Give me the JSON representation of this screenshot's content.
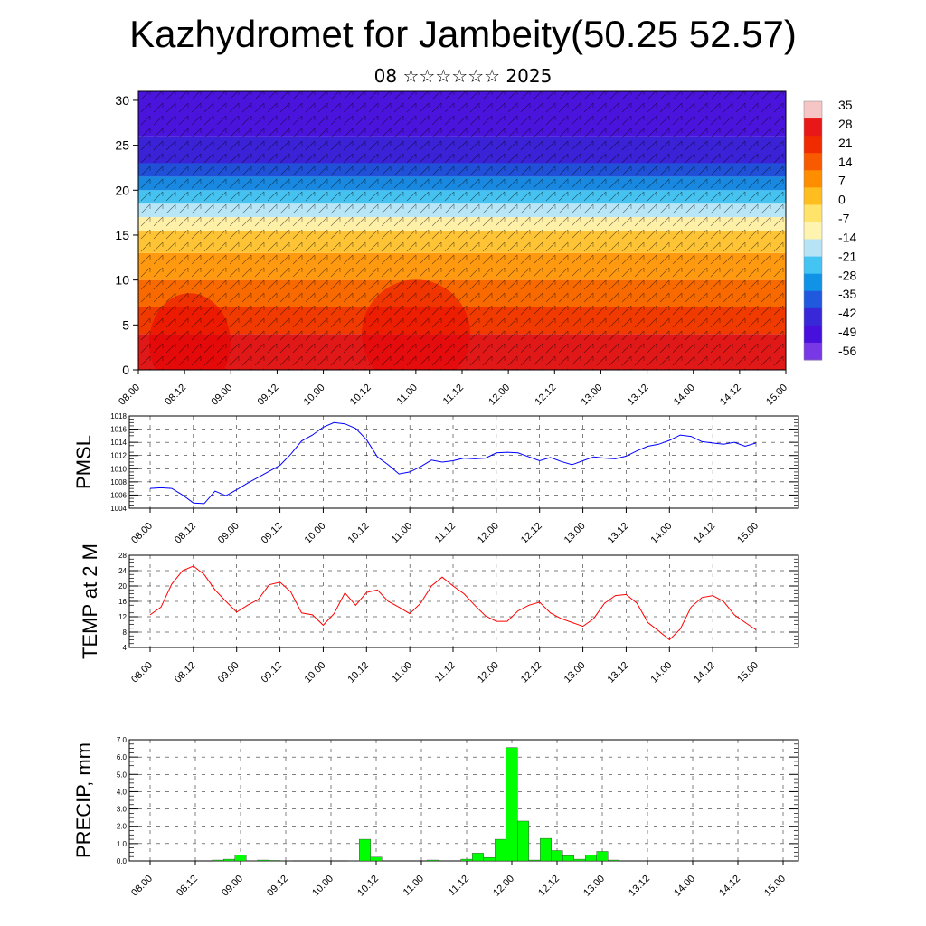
{
  "title": "Kazhydromet for Jambeity(50.25 52.57)",
  "subtitle": "08 ☆☆☆☆☆☆ 2025",
  "colors": {
    "pmsl_line": "#0000ff",
    "temp_line": "#ff0000",
    "precip_bar": "#00ff00"
  },
  "chart_data": [
    {
      "type": "heatmap",
      "name": "vertical-cross-section",
      "x_ticks": [
        "08.00",
        "08.12",
        "09.00",
        "09.12",
        "10.00",
        "10.12",
        "11.00",
        "11.12",
        "12.00",
        "12.12",
        "13.00",
        "13.12",
        "14.00",
        "14.12",
        "15.00"
      ],
      "y_ticks": [
        0,
        5,
        10,
        15,
        20,
        25,
        30
      ],
      "ylim": [
        0,
        31
      ],
      "colorbar_labels": [
        "35",
        "28",
        "21",
        "14",
        "7",
        "0",
        "-7",
        "-14",
        "-21",
        "-28",
        "-35",
        "-42",
        "-49",
        "-56"
      ],
      "colorbar_colors": [
        "#f6c6c6",
        "#e81818",
        "#f02b00",
        "#f85a00",
        "#ff8d00",
        "#ffbd20",
        "#ffe36a",
        "#fff3b0",
        "#b6e4f6",
        "#43c4f2",
        "#1093e6",
        "#2058de",
        "#3828d8",
        "#4810dd",
        "#7838e6"
      ],
      "notes_visible": "temperature colour field with wind barbs overlay"
    },
    {
      "type": "line",
      "ylabel": "PMSL",
      "ylim": [
        1004,
        1018
      ],
      "y_ticks": [
        1004,
        1006,
        1008,
        1010,
        1012,
        1014,
        1016,
        1018
      ],
      "x_ticks": [
        "08.00",
        "08.12",
        "09.00",
        "09.12",
        "10.00",
        "10.12",
        "11.00",
        "11.12",
        "12.00",
        "12.12",
        "13.00",
        "13.12",
        "14.00",
        "14.12",
        "15.00"
      ],
      "x": [
        0,
        3,
        6,
        9,
        12,
        15,
        18,
        21,
        24,
        27,
        30,
        33,
        36,
        39,
        42,
        45,
        48,
        51,
        54,
        57,
        60,
        63,
        66,
        69,
        72,
        75,
        78,
        81,
        84,
        87,
        90,
        93,
        96,
        99,
        102,
        105,
        108,
        111,
        114,
        117,
        120,
        123,
        126,
        129,
        132,
        135,
        138,
        141,
        144,
        147,
        150,
        153,
        156,
        159,
        162,
        165,
        168
      ],
      "values": [
        1007.0,
        1007.1,
        1007.0,
        1006.0,
        1004.8,
        1004.7,
        1006.6,
        1005.9,
        1006.8,
        1007.8,
        1008.7,
        1009.6,
        1010.5,
        1012.2,
        1014.2,
        1015.1,
        1016.3,
        1017.0,
        1016.8,
        1016.1,
        1014.4,
        1011.8,
        1010.6,
        1009.2,
        1009.5,
        1010.3,
        1011.3,
        1011.0,
        1011.2,
        1011.6,
        1011.5,
        1011.6,
        1012.4,
        1012.5,
        1012.4,
        1011.8,
        1011.2,
        1011.7,
        1011.1,
        1010.6,
        1011.2,
        1011.8,
        1011.6,
        1011.5,
        1011.9,
        1012.7,
        1013.4,
        1013.7,
        1014.3,
        1015.1,
        1014.9,
        1014.1,
        1013.9,
        1013.7,
        1014.0,
        1013.4,
        1013.9
      ]
    },
    {
      "type": "line",
      "ylabel": "TEMP at 2 M",
      "ylim": [
        4,
        28
      ],
      "y_ticks": [
        4,
        8,
        12,
        16,
        20,
        24,
        28
      ],
      "x_ticks": [
        "08.00",
        "08.12",
        "09.00",
        "09.12",
        "10.00",
        "10.12",
        "11.00",
        "11.12",
        "12.00",
        "12.12",
        "13.00",
        "13.12",
        "14.00",
        "14.12",
        "15.00"
      ],
      "x": [
        0,
        3,
        6,
        9,
        12,
        15,
        18,
        21,
        24,
        27,
        30,
        33,
        36,
        39,
        42,
        45,
        48,
        51,
        54,
        57,
        60,
        63,
        66,
        69,
        72,
        75,
        78,
        81,
        84,
        87,
        90,
        93,
        96,
        99,
        102,
        105,
        108,
        111,
        114,
        117,
        120,
        123,
        126,
        129,
        132,
        135,
        138,
        141,
        144,
        147,
        150,
        153,
        156,
        159,
        162,
        165,
        168
      ],
      "values": [
        12.5,
        14.5,
        20.5,
        24.0,
        25.2,
        23.0,
        19.0,
        16.0,
        13.2,
        15.0,
        16.5,
        20.3,
        21.0,
        18.5,
        13.0,
        12.5,
        9.8,
        12.8,
        18.2,
        15.0,
        18.3,
        19.0,
        16.0,
        14.5,
        12.8,
        15.5,
        20.0,
        22.3,
        20.0,
        18.0,
        15.0,
        12.2,
        10.8,
        10.8,
        13.5,
        15.0,
        15.8,
        13.0,
        11.5,
        10.5,
        9.5,
        11.5,
        15.5,
        17.5,
        17.8,
        15.5,
        10.5,
        8.3,
        6.0,
        8.8,
        14.5,
        17.0,
        17.5,
        16.0,
        12.5,
        10.5,
        8.6
      ]
    },
    {
      "type": "bar",
      "ylabel": "PRECIP, mm",
      "ylim": [
        0,
        7.0
      ],
      "y_ticks": [
        "0.0",
        "1.0",
        "2.0",
        "3.0",
        "4.0",
        "5.0",
        "6.0",
        "7.0"
      ],
      "x_ticks": [
        "08.00",
        "08.12",
        "09.00",
        "09.12",
        "10.00",
        "10.12",
        "11.00",
        "11.12",
        "12.00",
        "12.12",
        "13.00",
        "13.12",
        "14.00",
        "14.12",
        "15.00"
      ],
      "bar_width": 3,
      "x": [
        18,
        21,
        24,
        27,
        30,
        33,
        36,
        54,
        57,
        60,
        75,
        84,
        87,
        90,
        93,
        96,
        99,
        102,
        105,
        108,
        111,
        114,
        117,
        120,
        123
      ],
      "values": [
        0.05,
        0.1,
        0.35,
        0.02,
        0.05,
        0.03,
        0.02,
        0.02,
        1.25,
        0.22,
        0.05,
        0.1,
        0.45,
        0.2,
        1.25,
        6.55,
        2.3,
        0.05,
        1.3,
        0.6,
        0.3,
        0.1,
        0.35,
        0.55,
        0.05
      ]
    }
  ]
}
